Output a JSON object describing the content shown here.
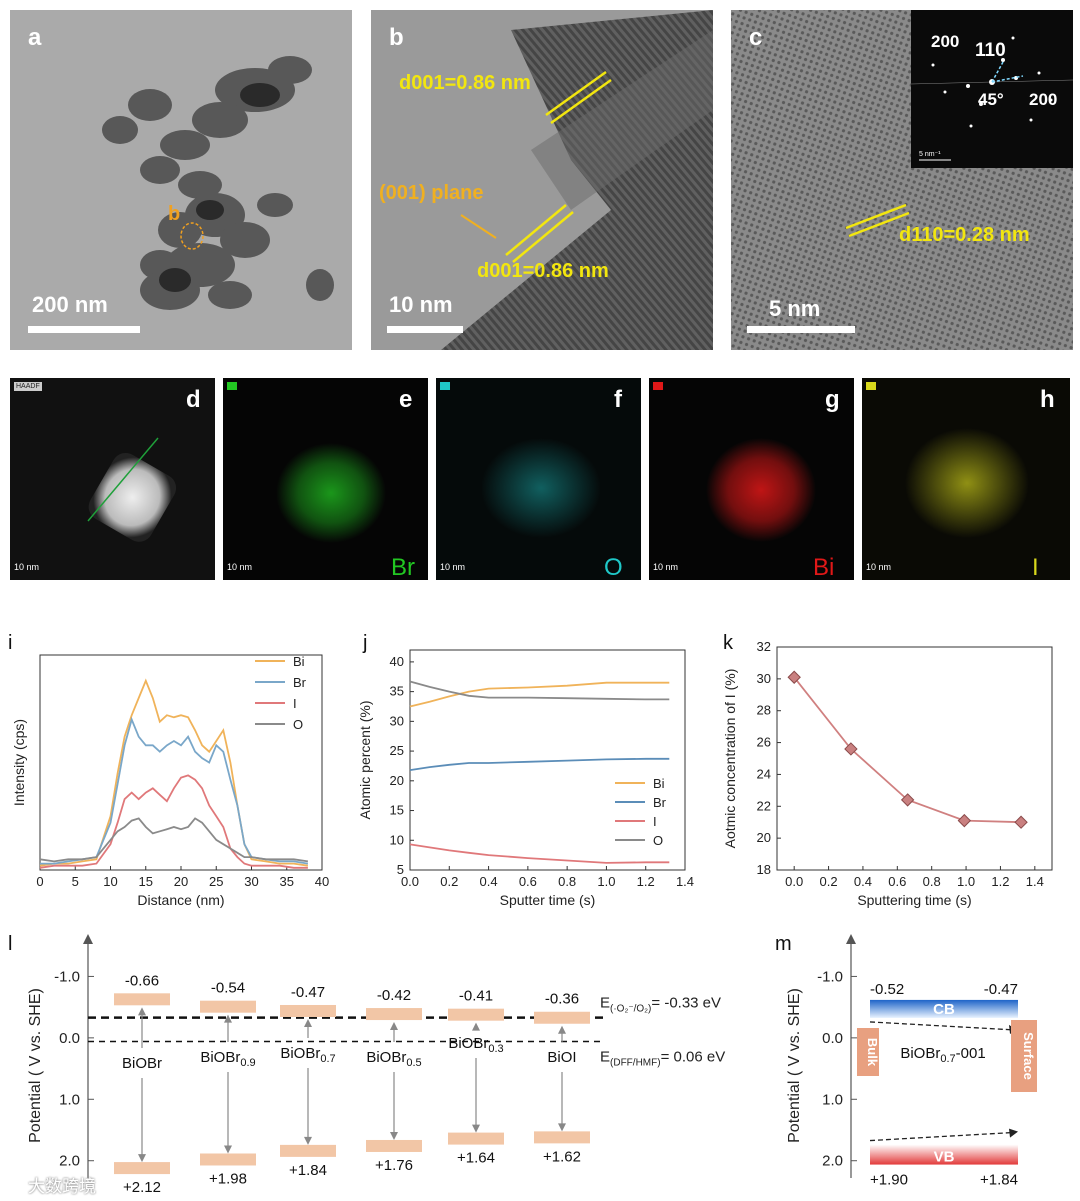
{
  "panels": {
    "a": {
      "label": "a",
      "scale": "200 nm",
      "marker": "b"
    },
    "b": {
      "label": "b",
      "scale": "10 nm",
      "d_top": "d001=0.86 nm",
      "plane": "(001) plane",
      "d_bottom": "d001=0.86 nm"
    },
    "c": {
      "label": "c",
      "scale": "5 nm",
      "d": "d110=0.28 nm",
      "saed": {
        "top_left": "200",
        "top": "110",
        "right": "200",
        "angle": "45°",
        "scale": "5 nm⁻¹"
      }
    },
    "d": {
      "label": "d",
      "tag": "HAADF",
      "scale": "10 nm"
    },
    "e": {
      "label": "e",
      "element": "Br",
      "scale": "10 nm",
      "color": "#22c722"
    },
    "f": {
      "label": "f",
      "element": "O",
      "scale": "10 nm",
      "color": "#1fc8c8"
    },
    "g": {
      "label": "g",
      "element": "Bi",
      "scale": "10 nm",
      "color": "#e01818"
    },
    "h": {
      "label": "h",
      "element": "I",
      "scale": "10 nm",
      "color": "#d8d81c"
    }
  },
  "chart_data": [
    {
      "id": "i",
      "type": "line",
      "xlabel": "Distance (nm)",
      "ylabel": "Intensity (cps)",
      "xlim": [
        0,
        40
      ],
      "xticks": [
        0,
        5,
        10,
        15,
        20,
        25,
        30,
        35,
        40
      ],
      "ylim": [
        0,
        1
      ],
      "x": [
        0,
        2,
        4,
        6,
        8,
        10,
        11,
        12,
        13,
        14,
        15,
        16,
        17,
        18,
        19,
        20,
        21,
        22,
        23,
        24,
        25,
        26,
        27,
        28,
        29,
        30,
        32,
        34,
        36,
        38
      ],
      "series": [
        {
          "name": "Bi",
          "color": "#f0b35a",
          "values": [
            0.02,
            0.03,
            0.03,
            0.04,
            0.05,
            0.25,
            0.45,
            0.62,
            0.72,
            0.8,
            0.88,
            0.8,
            0.69,
            0.72,
            0.71,
            0.72,
            0.71,
            0.65,
            0.58,
            0.55,
            0.6,
            0.65,
            0.5,
            0.3,
            0.12,
            0.05,
            0.04,
            0.03,
            0.03,
            0.02
          ]
        },
        {
          "name": "Br",
          "color": "#7aa7c9",
          "values": [
            0.03,
            0.03,
            0.04,
            0.05,
            0.06,
            0.22,
            0.4,
            0.58,
            0.7,
            0.62,
            0.58,
            0.58,
            0.55,
            0.58,
            0.6,
            0.58,
            0.62,
            0.55,
            0.52,
            0.5,
            0.58,
            0.55,
            0.42,
            0.3,
            0.12,
            0.06,
            0.05,
            0.04,
            0.04,
            0.03
          ]
        },
        {
          "name": "I",
          "color": "#e0787a",
          "values": [
            0.01,
            0.02,
            0.02,
            0.02,
            0.03,
            0.12,
            0.22,
            0.33,
            0.36,
            0.33,
            0.36,
            0.38,
            0.35,
            0.32,
            0.38,
            0.43,
            0.44,
            0.42,
            0.38,
            0.3,
            0.25,
            0.2,
            0.1,
            0.06,
            0.03,
            0.02,
            0.02,
            0.02,
            0.01,
            0.01
          ]
        },
        {
          "name": "O",
          "color": "#8a8a8a",
          "values": [
            0.05,
            0.04,
            0.05,
            0.05,
            0.06,
            0.14,
            0.18,
            0.2,
            0.23,
            0.24,
            0.2,
            0.17,
            0.18,
            0.19,
            0.2,
            0.19,
            0.2,
            0.24,
            0.22,
            0.18,
            0.14,
            0.12,
            0.1,
            0.08,
            0.06,
            0.06,
            0.05,
            0.05,
            0.05,
            0.04
          ]
        }
      ]
    },
    {
      "id": "j",
      "type": "line",
      "xlabel": "Sputter time (s)",
      "ylabel": "Atomic percent (%)",
      "xlim": [
        0,
        1.4
      ],
      "xticks": [
        0.0,
        0.2,
        0.4,
        0.6,
        0.8,
        1.0,
        1.2,
        1.4
      ],
      "ylim": [
        5,
        42
      ],
      "yticks": [
        5,
        10,
        15,
        20,
        25,
        30,
        35,
        40
      ],
      "x": [
        0.0,
        0.1,
        0.2,
        0.3,
        0.4,
        0.6,
        0.8,
        1.0,
        1.2,
        1.32
      ],
      "series": [
        {
          "name": "Bi",
          "color": "#f0b35a",
          "values": [
            32.5,
            33.3,
            34.2,
            35.0,
            35.5,
            35.7,
            36.0,
            36.5,
            36.5,
            36.5
          ]
        },
        {
          "name": "Br",
          "color": "#5b8db8",
          "values": [
            21.8,
            22.3,
            22.7,
            23.0,
            23.0,
            23.2,
            23.4,
            23.6,
            23.7,
            23.7
          ]
        },
        {
          "name": "I",
          "color": "#e0787a",
          "values": [
            9.3,
            8.8,
            8.3,
            7.9,
            7.5,
            7.0,
            6.6,
            6.2,
            6.3,
            6.3
          ]
        },
        {
          "name": "O",
          "color": "#8a8a8a",
          "values": [
            36.7,
            35.8,
            35.0,
            34.3,
            34.0,
            34.0,
            33.9,
            33.8,
            33.7,
            33.7
          ]
        }
      ]
    },
    {
      "id": "k",
      "type": "line",
      "xlabel": "Sputtering time (s)",
      "ylabel": "Aotmic concentration of I (%)",
      "xlim": [
        -0.1,
        1.5
      ],
      "xticks": [
        0.0,
        0.2,
        0.4,
        0.6,
        0.8,
        1.0,
        1.2,
        1.4
      ],
      "ylim": [
        18,
        32
      ],
      "yticks": [
        18,
        20,
        22,
        24,
        26,
        28,
        30,
        32
      ],
      "x": [
        0.0,
        0.33,
        0.66,
        0.99,
        1.32
      ],
      "values": [
        30.1,
        25.6,
        22.4,
        21.1,
        21.0
      ],
      "color": "#d08080"
    },
    {
      "id": "l",
      "type": "diagram",
      "ylabel": "Potential ( V vs. SHE)",
      "ylim": [
        2.2,
        -1.3
      ],
      "yticks": [
        -1.0,
        0.0,
        1.0,
        2.0
      ],
      "materials": [
        {
          "name": "BiOBr",
          "sub": "",
          "cb": -0.66,
          "vb": 2.12,
          "cb_label": "-0.66",
          "vb_label": "+2.12"
        },
        {
          "name": "BiOBr",
          "sub": "0.9",
          "cb": -0.54,
          "vb": 1.98,
          "cb_label": "-0.54",
          "vb_label": "+1.98"
        },
        {
          "name": "BiOBr",
          "sub": "0.7",
          "cb": -0.47,
          "vb": 1.84,
          "cb_label": "-0.47",
          "vb_label": "+1.84"
        },
        {
          "name": "BiOBr",
          "sub": "0.5",
          "cb": -0.42,
          "vb": 1.76,
          "cb_label": "-0.42",
          "vb_label": "+1.76"
        },
        {
          "name": "BiOBr",
          "sub": "0.3",
          "cb": -0.41,
          "vb": 1.64,
          "cb_label": "-0.41",
          "vb_label": "+1.64"
        },
        {
          "name": "BiOI",
          "sub": "",
          "cb": -0.36,
          "vb": 1.62,
          "cb_label": "-0.36",
          "vb_label": "+1.62"
        }
      ],
      "ref_lines": [
        {
          "value": -0.33,
          "prefix": "E",
          "sub": "(·O₂⁻/O₂)",
          "suffix": "= -0.33 eV"
        },
        {
          "value": 0.06,
          "prefix": "E",
          "sub": "(DFF/HMF)",
          "suffix": "= 0.06 eV"
        }
      ]
    },
    {
      "id": "m",
      "type": "diagram",
      "ylabel": "Potential ( V vs. SHE)",
      "ylim": [
        2.2,
        -1.3
      ],
      "yticks": [
        -1.0,
        0.0,
        1.0,
        2.0
      ],
      "cb_label": "CB",
      "vb_label": "VB",
      "cb_left": "-0.52",
      "cb_right": "-0.47",
      "vb_left": "+1.90",
      "vb_right": "+1.84",
      "bulk": "Bulk",
      "surface": "Surface",
      "material": "BiOBr",
      "material_sub": "0.7",
      "material_suffix": "-001"
    }
  ],
  "labels": {
    "i": "i",
    "j": "j",
    "k": "k",
    "l": "l",
    "m": "m"
  },
  "watermark": "大数跨境"
}
